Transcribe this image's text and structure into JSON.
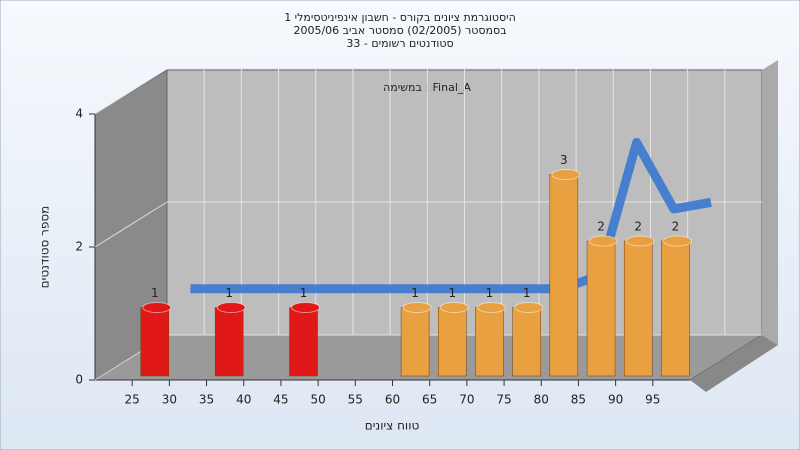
{
  "chart_data": {
    "type": "bar",
    "title_lines": [
      "היסטוגרמת ציונים בקורס - חשבון אינפיניטסימלי 1",
      "בסמסטר  (02/2005)  סמסטר אביב 2005/06",
      "סטודנטים רשומים - 33"
    ],
    "annotation": "במשימה : Final_A",
    "x_label": "טווח ציונים",
    "y_label": "מספר סטודנטים",
    "x": [
      27.5,
      37.5,
      47.5,
      62.5,
      67.5,
      72.5,
      77.5,
      82.5,
      87.5,
      92.5,
      97.5
    ],
    "values": [
      1,
      1,
      1,
      1,
      1,
      1,
      1,
      3,
      2,
      2,
      2
    ],
    "colors": [
      "#e01818",
      "#e01818",
      "#e01818",
      "#e8a040",
      "#e8a040",
      "#e8a040",
      "#e8a040",
      "#e8a040",
      "#e8a040",
      "#e8a040",
      "#e8a040"
    ],
    "line_values": [
      1,
      1,
      1,
      1,
      1,
      1,
      1,
      1.2,
      3.2,
      2.2,
      2.3
    ],
    "line_color": "#3a78d0",
    "xlim": [
      20,
      100
    ],
    "xticks": [
      25,
      30,
      35,
      40,
      45,
      50,
      55,
      60,
      65,
      70,
      75,
      80,
      85,
      90,
      95
    ],
    "ylim": [
      0,
      4
    ],
    "yticks": [
      0,
      2,
      4
    ],
    "grid": true
  }
}
